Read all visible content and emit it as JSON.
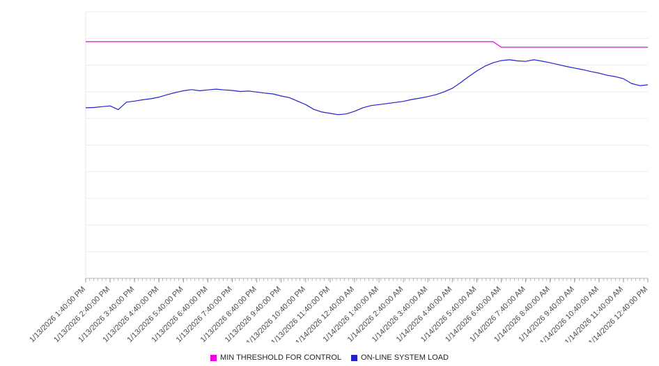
{
  "chart_data": {
    "type": "line",
    "title": "",
    "xlabel": "",
    "ylabel": "",
    "ylim": [
      0,
      100
    ],
    "grid": "horizontal",
    "grid_step": 10,
    "legend_position": "bottom",
    "x_tick_step": 3,
    "x_labels": [
      "1/13/2026 1:40:00 PM",
      "1/13/2026 2:40:00 PM",
      "1/13/2026 3:40:00 PM",
      "1/13/2026 4:40:00 PM",
      "1/13/2026 5:40:00 PM",
      "1/13/2026 6:40:00 PM",
      "1/13/2026 7:40:00 PM",
      "1/13/2026 8:40:00 PM",
      "1/13/2026 9:40:00 PM",
      "1/13/2026 10:40:00 PM",
      "1/13/2026 11:40:00 PM",
      "1/14/2026 12:40:00 AM",
      "1/14/2026 1:40:00 AM",
      "1/14/2026 2:40:00 AM",
      "1/14/2026 3:40:00 AM",
      "1/14/2026 4:40:00 AM",
      "1/14/2026 5:40:00 AM",
      "1/14/2026 6:40:00 AM",
      "1/14/2026 7:40:00 AM",
      "1/14/2026 8:40:00 AM",
      "1/14/2026 9:40:00 AM",
      "1/14/2026 10:40:00 AM",
      "1/14/2026 11:40:00 AM",
      "1/14/2026 12:40:00 PM"
    ],
    "series": [
      {
        "name": "MIN THRESHOLD FOR CONTROL",
        "color": "#ee00dd",
        "values": [
          88.8,
          88.8,
          88.8,
          88.8,
          88.8,
          88.8,
          88.8,
          88.8,
          88.8,
          88.8,
          88.8,
          88.8,
          88.8,
          88.8,
          88.8,
          88.8,
          88.8,
          88.8,
          88.8,
          88.8,
          88.8,
          88.8,
          88.8,
          88.8,
          88.8,
          88.8,
          88.8,
          88.8,
          88.8,
          88.8,
          88.8,
          88.8,
          88.8,
          88.8,
          88.8,
          88.8,
          88.8,
          88.8,
          88.8,
          88.8,
          88.8,
          88.8,
          88.8,
          88.8,
          88.8,
          88.8,
          88.8,
          88.8,
          88.8,
          88.8,
          88.8,
          86.7,
          86.7,
          86.7,
          86.7,
          86.7,
          86.7,
          86.7,
          86.7,
          86.7,
          86.7,
          86.7,
          86.7,
          86.7,
          86.7,
          86.7,
          86.7,
          86.7,
          86.7,
          86.7
        ]
      },
      {
        "name": "ON-LINE SYSTEM LOAD",
        "color": "#2222cc",
        "values": [
          64.0,
          64.1,
          64.4,
          64.7,
          63.3,
          66.1,
          66.5,
          67.0,
          67.4,
          68.0,
          68.9,
          69.7,
          70.4,
          70.8,
          70.4,
          70.7,
          71.0,
          70.7,
          70.5,
          70.1,
          70.3,
          69.9,
          69.5,
          69.2,
          68.4,
          67.8,
          66.5,
          65.2,
          63.4,
          62.4,
          61.9,
          61.4,
          61.7,
          62.7,
          64.0,
          64.8,
          65.2,
          65.6,
          66.0,
          66.4,
          67.1,
          67.6,
          68.2,
          68.9,
          70.0,
          71.3,
          73.4,
          75.7,
          77.8,
          79.6,
          80.9,
          81.7,
          82.0,
          81.6,
          81.4,
          82.0,
          81.5,
          80.9,
          80.2,
          79.5,
          78.9,
          78.3,
          77.6,
          77.0,
          76.2,
          75.7,
          74.9,
          73.1,
          72.3,
          72.6
        ]
      }
    ]
  },
  "legend": {
    "items": [
      {
        "label": "MIN THRESHOLD FOR CONTROL"
      },
      {
        "label": "ON-LINE SYSTEM LOAD"
      }
    ]
  }
}
